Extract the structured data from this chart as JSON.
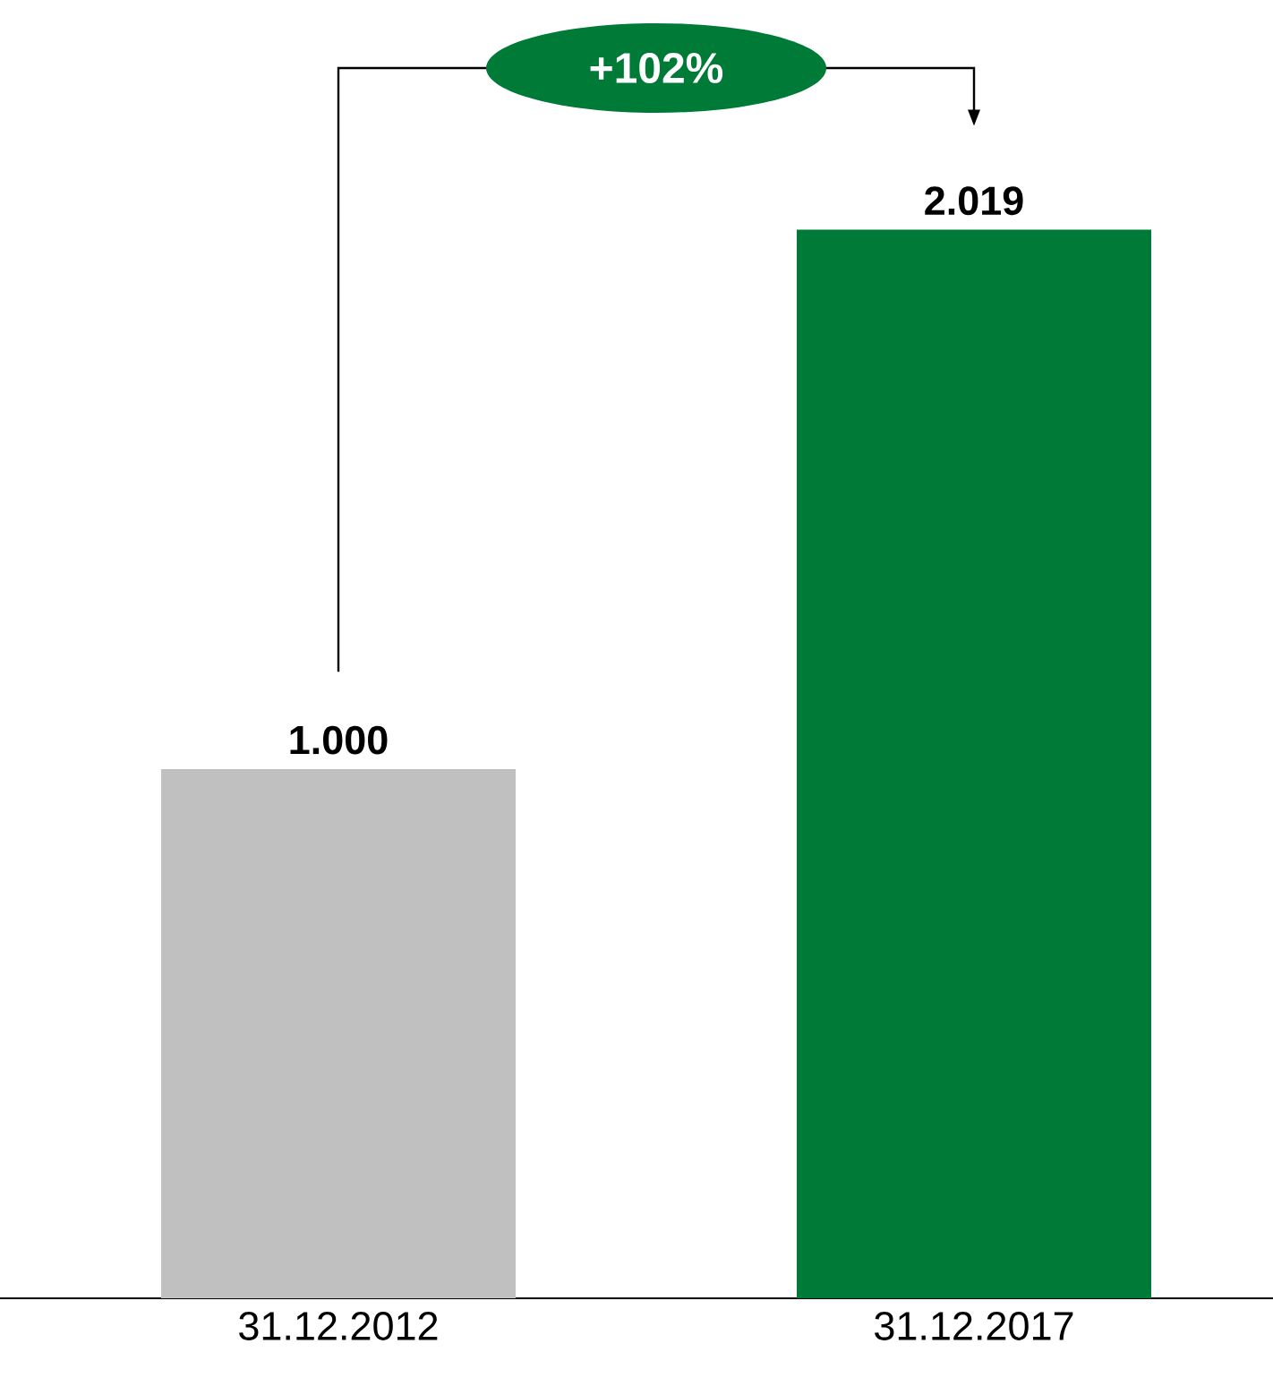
{
  "chart_data": {
    "type": "bar",
    "categories": [
      "31.12.2012",
      "31.12.2017"
    ],
    "values": [
      1000,
      2019
    ],
    "colors": [
      "#c0c0c0",
      "#007a37"
    ],
    "value_labels": [
      "1.000",
      "2.019"
    ],
    "annotations": [
      "+102%"
    ]
  }
}
